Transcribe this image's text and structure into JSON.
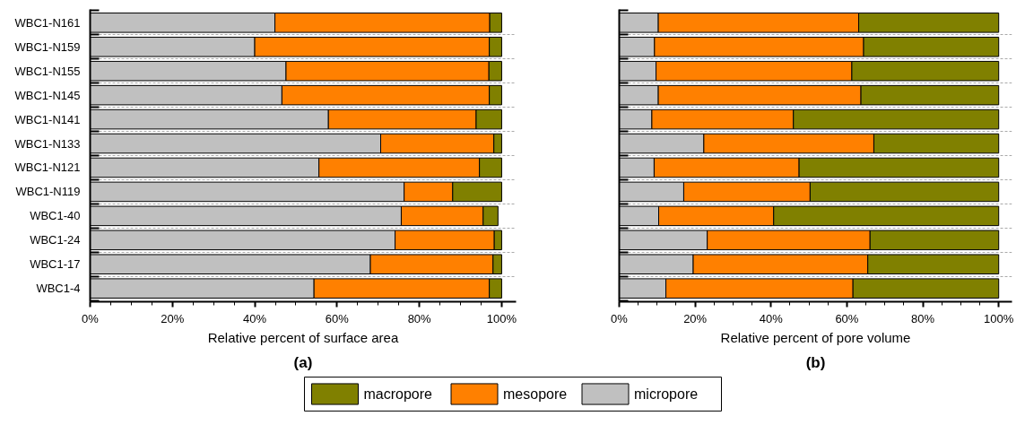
{
  "chart_data": [
    {
      "type": "bar",
      "orientation": "horizontal",
      "stacked": true,
      "title": "(a)",
      "xlabel": "Relative percent of surface area",
      "categories": [
        "WBC1-N161",
        "WBC1-N159",
        "WBC1-N155",
        "WBC1-N145",
        "WBC1-N141",
        "WBC1-N133",
        "WBC1-N121",
        "WBC1-N119",
        "WBC1-40",
        "WBC1-24",
        "WBC1-17",
        "WBC1-4"
      ],
      "series": [
        {
          "name": "micropore",
          "color": "#c0c0c0",
          "values": [
            44.9,
            40.0,
            47.6,
            46.6,
            57.9,
            70.6,
            55.6,
            76.3,
            75.6,
            74.1,
            68.1,
            54.4
          ]
        },
        {
          "name": "mesopore",
          "color": "#ff8000",
          "values": [
            52.2,
            57.0,
            49.3,
            50.4,
            35.9,
            27.5,
            39.0,
            11.8,
            19.9,
            24.1,
            29.8,
            42.6
          ]
        },
        {
          "name": "macropore",
          "color": "#808000",
          "values": [
            2.9,
            3.0,
            3.1,
            3.0,
            6.2,
            1.9,
            5.4,
            11.9,
            3.6,
            1.8,
            2.1,
            3.0
          ]
        }
      ],
      "xlim": [
        0,
        103.5
      ],
      "xticks": [
        {
          "value": 0,
          "label": "0%"
        },
        {
          "value": 20,
          "label": "20%"
        },
        {
          "value": 40,
          "label": "40%"
        },
        {
          "value": 60,
          "label": "60%"
        },
        {
          "value": 80,
          "label": "80%"
        },
        {
          "value": 100,
          "label": "100%"
        }
      ],
      "grid": "y",
      "legend": "bottom"
    },
    {
      "type": "bar",
      "orientation": "horizontal",
      "stacked": true,
      "title": "(b)",
      "xlabel": "Relative percent of pore volume",
      "categories": [
        null,
        null,
        null,
        null,
        null,
        null,
        null,
        null,
        null,
        null,
        null,
        null
      ],
      "series": [
        {
          "color": "#c0c0c0",
          "values": [
            10.3,
            9.3,
            9.7,
            10.3,
            8.6,
            22.3,
            9.2,
            17.0,
            10.4,
            23.2,
            19.5,
            12.3
          ]
        },
        {
          "color": "#ff8000",
          "values": [
            52.8,
            55.1,
            51.6,
            53.4,
            37.3,
            44.8,
            38.2,
            33.3,
            30.3,
            42.9,
            46.0,
            49.3
          ]
        },
        {
          "color": "#808000",
          "values": [
            36.9,
            35.6,
            38.7,
            36.3,
            54.1,
            32.9,
            52.6,
            49.7,
            59.3,
            33.9,
            34.5,
            38.4
          ]
        }
      ],
      "xlim": [
        0,
        103.5
      ],
      "xticks": [
        {
          "value": 0,
          "label": "0%"
        },
        {
          "value": 20,
          "label": "20%"
        },
        {
          "value": 40,
          "label": "40%"
        },
        {
          "value": 60,
          "label": "60%"
        },
        {
          "value": 80,
          "label": "80%"
        },
        {
          "value": 100,
          "label": "100%"
        }
      ],
      "grid": "y"
    }
  ]
}
